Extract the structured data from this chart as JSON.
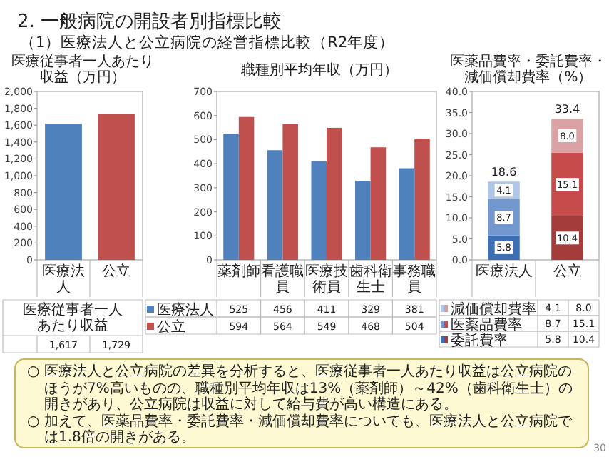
{
  "chart_data": [
    {
      "type": "other",
      "title": "2. 一般病院の開設者別指標比較",
      "subtitle": "（1）医療法人と公立病院の経営指標比較（R2年度）",
      "annotations": [
        "○ 医療法人と公立病院の差異を分析すると、医療従事者一人あたり収益は公立病院のほうが7%高いものの、職種別平均年収は13%（薬剤師）～42%（歯科衛生士）の開きがあり、公立病院は収益に対して給与費が高い構造にある。",
        "○ 加えて、医薬品費率・委託費率・減価償却費率についても、医療法人と公立病院では1.8倍の開きがある。",
        "30"
      ]
    },
    {
      "type": "bar",
      "title": "医療従事者一人あたり収益（万円）",
      "categories": [
        "医療法人",
        "公立"
      ],
      "series": [
        {
          "name": "医療従事者一人あたり収益",
          "colors": [
            "#4f81bd",
            "#c0504d"
          ],
          "values": [
            1617,
            1729
          ],
          "value_labels": [
            "1,617",
            "1,729"
          ]
        }
      ],
      "ylim": [
        0,
        2000
      ],
      "yticks": [
        0,
        200,
        400,
        600,
        800,
        {
          "value": 1000,
          "label": "1,000"
        },
        {
          "value": 1200,
          "label": "1,200"
        },
        {
          "value": 1400,
          "label": "1,400"
        },
        {
          "value": 1600,
          "label": "1,600"
        },
        {
          "value": 1800,
          "label": "1,800"
        },
        {
          "value": 2000,
          "label": "2,000"
        }
      ],
      "grid": false
    },
    {
      "type": "bar",
      "title": "職種別平均年収（万円）",
      "categories": [
        "薬剤師",
        "看護職員",
        "医療技術員",
        "歯科衛生士",
        "事務職員"
      ],
      "series": [
        {
          "name": "医療法人",
          "color": "#4f81bd",
          "values": [
            525,
            456,
            411,
            329,
            381
          ]
        },
        {
          "name": "公立",
          "color": "#c0504d",
          "values": [
            594,
            564,
            549,
            468,
            504
          ]
        }
      ],
      "ylim": [
        0,
        700
      ],
      "yticks": [
        0,
        100,
        200,
        300,
        400,
        500,
        600,
        700
      ],
      "grid": false,
      "data_labels": true,
      "legend": "bottom"
    },
    {
      "type": "bar",
      "title": "医薬品費率・委託費率・減価償却費率（%）",
      "categories": [
        "医療法人",
        "公立"
      ],
      "stacked": true,
      "series": [
        {
          "name": "委託費率",
          "colors": [
            "#3e6fb5",
            "#a53c3c"
          ],
          "values": [
            5.8,
            10.4
          ],
          "value_labels": [
            "5.8",
            "10.4"
          ]
        },
        {
          "name": "医薬品費率",
          "colors": [
            "#7398cf",
            "#c84b4b"
          ],
          "values": [
            8.7,
            15.1
          ],
          "value_labels": [
            "8.7",
            "15.1"
          ]
        },
        {
          "name": "減価償却費率",
          "colors": [
            "#b0c6e6",
            "#dba2a5"
          ],
          "values": [
            4.1,
            8.0
          ],
          "value_labels": [
            "4.1",
            "8.0"
          ]
        }
      ],
      "totals": [
        "18.6",
        "33.4"
      ],
      "legend": "bottom",
      "ylim": [
        0,
        40
      ],
      "yticks": [
        {
          "value": 0,
          "label": "0.0"
        },
        {
          "value": 5,
          "label": "5.0"
        },
        {
          "value": 10,
          "label": "10.0"
        },
        {
          "value": 15,
          "label": "15.0"
        },
        {
          "value": 20,
          "label": "20.0"
        },
        {
          "value": 25,
          "label": "25.0"
        },
        {
          "value": 30,
          "label": "30.0"
        },
        {
          "value": 35,
          "label": "35.0"
        },
        {
          "value": 40,
          "label": "40.0"
        }
      ],
      "grid": false
    }
  ]
}
